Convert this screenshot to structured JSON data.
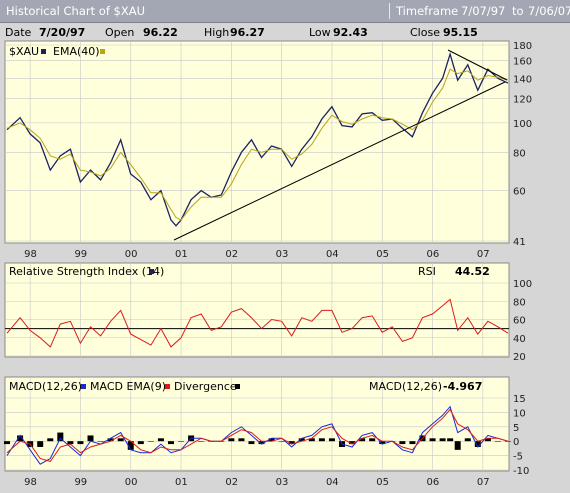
{
  "header": {
    "title": "Historical Chart of $XAU",
    "timeframe_label": "Timeframe",
    "from": "7/07/97",
    "to_word": "to",
    "to": "7/06/07"
  },
  "quote": {
    "date_label": "Date",
    "date": "7/20/97",
    "open_label": "Open",
    "open": "96.22",
    "high_label": "High",
    "high": "96.27",
    "low_label": "Low",
    "low": "92.43",
    "close_label": "Close",
    "close": "95.15"
  },
  "colors": {
    "price": "#1a2360",
    "ema": "#b8a416",
    "rsi": "#dd1a1a",
    "macd": "#1a28d8",
    "macd_ema": "#dd1a1a",
    "divergence": "#000000",
    "panel_bg": "#ffffdc",
    "grid": "#c8c8c8"
  },
  "chart_data": [
    {
      "type": "line",
      "name": "price",
      "legend": [
        {
          "label": "$XAU",
          "marker": "square"
        },
        {
          "label": "EMA(40)",
          "marker": "square"
        }
      ],
      "x_ticks": [
        "98",
        "99",
        "00",
        "01",
        "02",
        "03",
        "04",
        "05",
        "06",
        "07"
      ],
      "y_ticks": [
        "180",
        "160",
        "140",
        "120",
        "100",
        "80",
        "60",
        "41"
      ],
      "y_scale": "log",
      "ylim": [
        41,
        180
      ],
      "series": [
        {
          "name": "$XAU",
          "x": [
            1997.54,
            1997.8,
            1998.0,
            1998.2,
            1998.4,
            1998.6,
            1998.8,
            1999.0,
            1999.2,
            1999.4,
            1999.6,
            1999.8,
            2000.0,
            2000.2,
            2000.4,
            2000.6,
            2000.8,
            2000.9,
            2001.0,
            2001.2,
            2001.4,
            2001.6,
            2001.8,
            2002.0,
            2002.2,
            2002.4,
            2002.6,
            2002.8,
            2003.0,
            2003.2,
            2003.4,
            2003.6,
            2003.8,
            2004.0,
            2004.2,
            2004.4,
            2004.6,
            2004.8,
            2005.0,
            2005.2,
            2005.4,
            2005.6,
            2005.8,
            2006.0,
            2006.2,
            2006.35,
            2006.5,
            2006.7,
            2006.9,
            2007.1,
            2007.3,
            2007.5
          ],
          "values": [
            95,
            104,
            92,
            86,
            70,
            78,
            82,
            64,
            70,
            65,
            74,
            88,
            68,
            64,
            56,
            60,
            48,
            46,
            48,
            56,
            60,
            57,
            58,
            69,
            80,
            88,
            77,
            84,
            82,
            72,
            82,
            90,
            103,
            113,
            98,
            97,
            107,
            108,
            102,
            103,
            96,
            90,
            108,
            125,
            140,
            168,
            138,
            155,
            128,
            150,
            140,
            135
          ]
        },
        {
          "name": "EMA(40)",
          "x": [
            1997.54,
            1997.8,
            1998.0,
            1998.2,
            1998.4,
            1998.6,
            1998.8,
            1999.0,
            1999.2,
            1999.4,
            1999.6,
            1999.8,
            2000.0,
            2000.2,
            2000.4,
            2000.6,
            2000.8,
            2000.9,
            2001.0,
            2001.2,
            2001.4,
            2001.6,
            2001.8,
            2002.0,
            2002.2,
            2002.4,
            2002.6,
            2002.8,
            2003.0,
            2003.2,
            2003.4,
            2003.6,
            2003.8,
            2004.0,
            2004.2,
            2004.4,
            2004.6,
            2004.8,
            2005.0,
            2005.2,
            2005.4,
            2005.6,
            2005.8,
            2006.0,
            2006.2,
            2006.35,
            2006.5,
            2006.7,
            2006.9,
            2007.1,
            2007.3,
            2007.5
          ],
          "values": [
            96,
            100,
            95,
            89,
            78,
            76,
            79,
            70,
            69,
            67,
            71,
            80,
            73,
            66,
            59,
            59,
            52,
            49,
            48,
            53,
            57,
            57,
            57,
            63,
            73,
            82,
            80,
            82,
            82,
            76,
            79,
            85,
            96,
            106,
            101,
            99,
            103,
            106,
            104,
            103,
            99,
            95,
            102,
            117,
            130,
            150,
            145,
            148,
            138,
            143,
            141,
            138
          ]
        }
      ]
    },
    {
      "type": "line",
      "name": "rsi",
      "title": "Relative Strength Index (14)",
      "value_label": "RSI",
      "value": "44.52",
      "y_ticks": [
        "100",
        "80",
        "60",
        "40",
        "20"
      ],
      "ylim": [
        20,
        100
      ],
      "reference_line": 50,
      "series": [
        {
          "name": "RSI",
          "x": [
            1997.54,
            1997.8,
            1998.0,
            1998.2,
            1998.4,
            1998.6,
            1998.8,
            1999.0,
            1999.2,
            1999.4,
            1999.6,
            1999.8,
            2000.0,
            2000.2,
            2000.4,
            2000.6,
            2000.8,
            2001.0,
            2001.2,
            2001.4,
            2001.6,
            2001.8,
            2002.0,
            2002.2,
            2002.4,
            2002.6,
            2002.8,
            2003.0,
            2003.2,
            2003.4,
            2003.6,
            2003.8,
            2004.0,
            2004.2,
            2004.4,
            2004.6,
            2004.8,
            2005.0,
            2005.2,
            2005.4,
            2005.6,
            2005.8,
            2006.0,
            2006.2,
            2006.35,
            2006.5,
            2006.7,
            2006.9,
            2007.1,
            2007.3,
            2007.5
          ],
          "values": [
            45,
            62,
            48,
            40,
            30,
            55,
            58,
            34,
            52,
            42,
            58,
            70,
            44,
            38,
            32,
            50,
            30,
            40,
            62,
            66,
            48,
            52,
            68,
            72,
            62,
            50,
            60,
            58,
            42,
            62,
            58,
            70,
            70,
            46,
            50,
            62,
            64,
            46,
            52,
            36,
            40,
            62,
            66,
            75,
            82,
            48,
            62,
            44,
            58,
            52,
            45
          ]
        }
      ]
    },
    {
      "type": "line",
      "name": "macd",
      "title_parts": [
        "MACD(12,26)",
        "MACD EMA(9)",
        "Divergence"
      ],
      "value_label": "MACD(12,26)",
      "value": "-4.967",
      "y_ticks": [
        "15",
        "10",
        "5",
        "0",
        "-5",
        "-10"
      ],
      "ylim": [
        -10,
        15
      ],
      "series": [
        {
          "name": "MACD(12,26)",
          "x": [
            1997.54,
            1997.8,
            1998.0,
            1998.2,
            1998.4,
            1998.6,
            1998.8,
            1999.0,
            1999.2,
            1999.4,
            1999.6,
            1999.8,
            2000.0,
            2000.2,
            2000.4,
            2000.6,
            2000.8,
            2001.0,
            2001.2,
            2001.4,
            2001.6,
            2001.8,
            2002.0,
            2002.2,
            2002.4,
            2002.6,
            2002.8,
            2003.0,
            2003.2,
            2003.4,
            2003.6,
            2003.8,
            2004.0,
            2004.2,
            2004.4,
            2004.6,
            2004.8,
            2005.0,
            2005.2,
            2005.4,
            2005.6,
            2005.8,
            2006.0,
            2006.2,
            2006.35,
            2006.5,
            2006.7,
            2006.9,
            2007.1,
            2007.3,
            2007.5
          ],
          "values": [
            -5,
            2,
            -3,
            -8,
            -6,
            1,
            -2,
            -5,
            0,
            -1,
            1,
            3,
            -3,
            -4,
            -4,
            -1,
            -4,
            -3,
            1,
            1,
            0,
            0,
            3,
            5,
            2,
            -1,
            1,
            1,
            -2,
            1,
            2,
            5,
            6,
            -1,
            -2,
            2,
            3,
            -1,
            0,
            -3,
            -4,
            3,
            6,
            9,
            12,
            3,
            5,
            -2,
            2,
            1,
            0
          ]
        },
        {
          "name": "MACD EMA(9)",
          "x": [
            1997.54,
            1997.8,
            1998.0,
            1998.2,
            1998.4,
            1998.6,
            1998.8,
            1999.0,
            1999.2,
            1999.4,
            1999.6,
            1999.8,
            2000.0,
            2000.2,
            2000.4,
            2000.6,
            2000.8,
            2001.0,
            2001.2,
            2001.4,
            2001.6,
            2001.8,
            2002.0,
            2002.2,
            2002.4,
            2002.6,
            2002.8,
            2003.0,
            2003.2,
            2003.4,
            2003.6,
            2003.8,
            2004.0,
            2004.2,
            2004.4,
            2004.6,
            2004.8,
            2005.0,
            2005.2,
            2005.4,
            2005.6,
            2005.8,
            2006.0,
            2006.2,
            2006.35,
            2006.5,
            2006.7,
            2006.9,
            2007.1,
            2007.3,
            2007.5
          ],
          "values": [
            -4,
            0,
            -1,
            -6,
            -7,
            -2,
            -1,
            -4,
            -2,
            -1,
            0,
            2,
            0,
            -3,
            -4,
            -2,
            -3,
            -3,
            -1,
            1,
            0,
            0,
            2,
            4,
            3,
            0,
            0,
            1,
            -1,
            0,
            1,
            4,
            5,
            1,
            -1,
            1,
            2,
            0,
            0,
            -2,
            -3,
            1,
            5,
            8,
            11,
            6,
            4,
            0,
            1,
            1,
            0
          ]
        },
        {
          "name": "Divergence",
          "x": [
            1997.54,
            1997.8,
            1998.0,
            1998.2,
            1998.4,
            1998.6,
            1998.8,
            1999.0,
            1999.2,
            1999.4,
            1999.6,
            1999.8,
            2000.0,
            2000.2,
            2000.4,
            2000.6,
            2000.8,
            2001.0,
            2001.2,
            2001.4,
            2001.6,
            2001.8,
            2002.0,
            2002.2,
            2002.4,
            2002.6,
            2002.8,
            2003.0,
            2003.2,
            2003.4,
            2003.6,
            2003.8,
            2004.0,
            2004.2,
            2004.4,
            2004.6,
            2004.8,
            2005.0,
            2005.2,
            2005.4,
            2005.6,
            2005.8,
            2006.0,
            2006.2,
            2006.35,
            2006.5,
            2006.7,
            2006.9,
            2007.1,
            2007.3,
            2007.5
          ],
          "values": [
            -1,
            2,
            -2,
            -2,
            1,
            3,
            -1,
            -1,
            2,
            0,
            1,
            1,
            -3,
            -1,
            0,
            1,
            -1,
            0,
            2,
            0,
            0,
            0,
            1,
            1,
            -1,
            -1,
            1,
            0,
            -1,
            1,
            1,
            1,
            1,
            -2,
            -1,
            1,
            1,
            -1,
            0,
            -1,
            -1,
            2,
            1,
            1,
            1,
            -3,
            1,
            -2,
            1,
            0,
            0
          ]
        }
      ]
    }
  ]
}
